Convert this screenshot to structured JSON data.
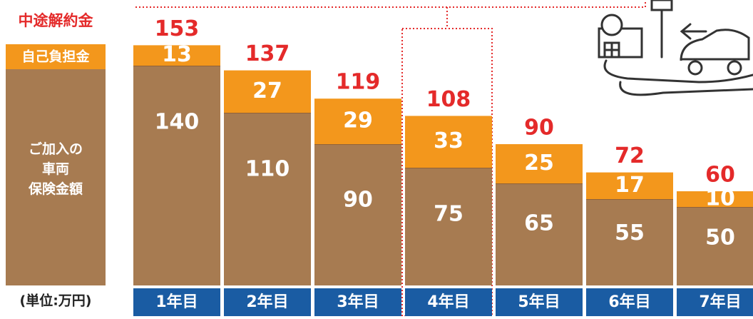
{
  "chart_data": {
    "type": "stacked_bar",
    "total_name": "中途解約金",
    "unit": "(単位:万円)",
    "categories": [
      "1年目",
      "2年目",
      "3年目",
      "4年目",
      "5年目",
      "6年目",
      "7年目"
    ],
    "totals": [
      153,
      137,
      119,
      108,
      90,
      72,
      60
    ],
    "total_color": "#e42a2a",
    "series": [
      {
        "name": "ご加入の\n車両\n保険金額",
        "color": "#a77b51",
        "values": [
          140,
          110,
          90,
          75,
          65,
          55,
          50
        ]
      },
      {
        "name": "自己負担金",
        "color": "#f3971c",
        "values": [
          13,
          27,
          29,
          33,
          25,
          17,
          10
        ]
      }
    ],
    "category_color": "#1a5ca3"
  }
}
